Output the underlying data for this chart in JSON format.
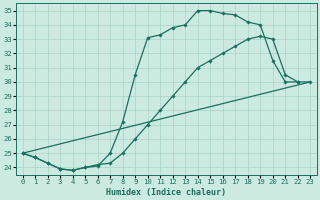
{
  "xlabel": "Humidex (Indice chaleur)",
  "bg_color": "#cceae0",
  "grid_color": "#aad4c8",
  "line_color": "#1a7060",
  "xlim": [
    -0.5,
    23.5
  ],
  "ylim": [
    23.5,
    35.5
  ],
  "xticks": [
    0,
    1,
    2,
    3,
    4,
    5,
    6,
    7,
    8,
    9,
    10,
    11,
    12,
    13,
    14,
    15,
    16,
    17,
    18,
    19,
    20,
    21,
    22,
    23
  ],
  "yticks": [
    24,
    25,
    26,
    27,
    28,
    29,
    30,
    31,
    32,
    33,
    34,
    35
  ],
  "curve1_x": [
    0,
    1,
    2,
    3,
    4,
    5,
    6,
    7,
    8,
    9,
    10,
    11,
    12,
    13,
    14,
    15,
    16,
    17,
    18,
    19,
    20,
    21,
    22
  ],
  "curve1_y": [
    25.0,
    24.7,
    24.3,
    23.9,
    23.8,
    24.0,
    24.1,
    25.0,
    27.2,
    30.5,
    33.1,
    33.3,
    33.8,
    34.0,
    35.0,
    35.0,
    34.8,
    34.7,
    34.2,
    34.0,
    31.5,
    30.0,
    30.0
  ],
  "curve2_x": [
    0,
    1,
    2,
    3,
    4,
    5,
    6,
    7,
    8,
    9,
    10,
    11,
    12,
    13,
    14,
    15,
    16,
    17,
    18,
    19,
    20,
    21,
    22,
    23
  ],
  "curve2_y": [
    25.0,
    24.7,
    24.3,
    23.9,
    23.8,
    24.0,
    24.2,
    24.3,
    25.0,
    26.0,
    27.0,
    28.0,
    29.0,
    30.0,
    31.0,
    31.5,
    32.0,
    32.5,
    33.0,
    33.2,
    33.0,
    30.5,
    30.0,
    30.0
  ],
  "curve3_x": [
    0,
    23
  ],
  "curve3_y": [
    25.0,
    30.0
  ]
}
